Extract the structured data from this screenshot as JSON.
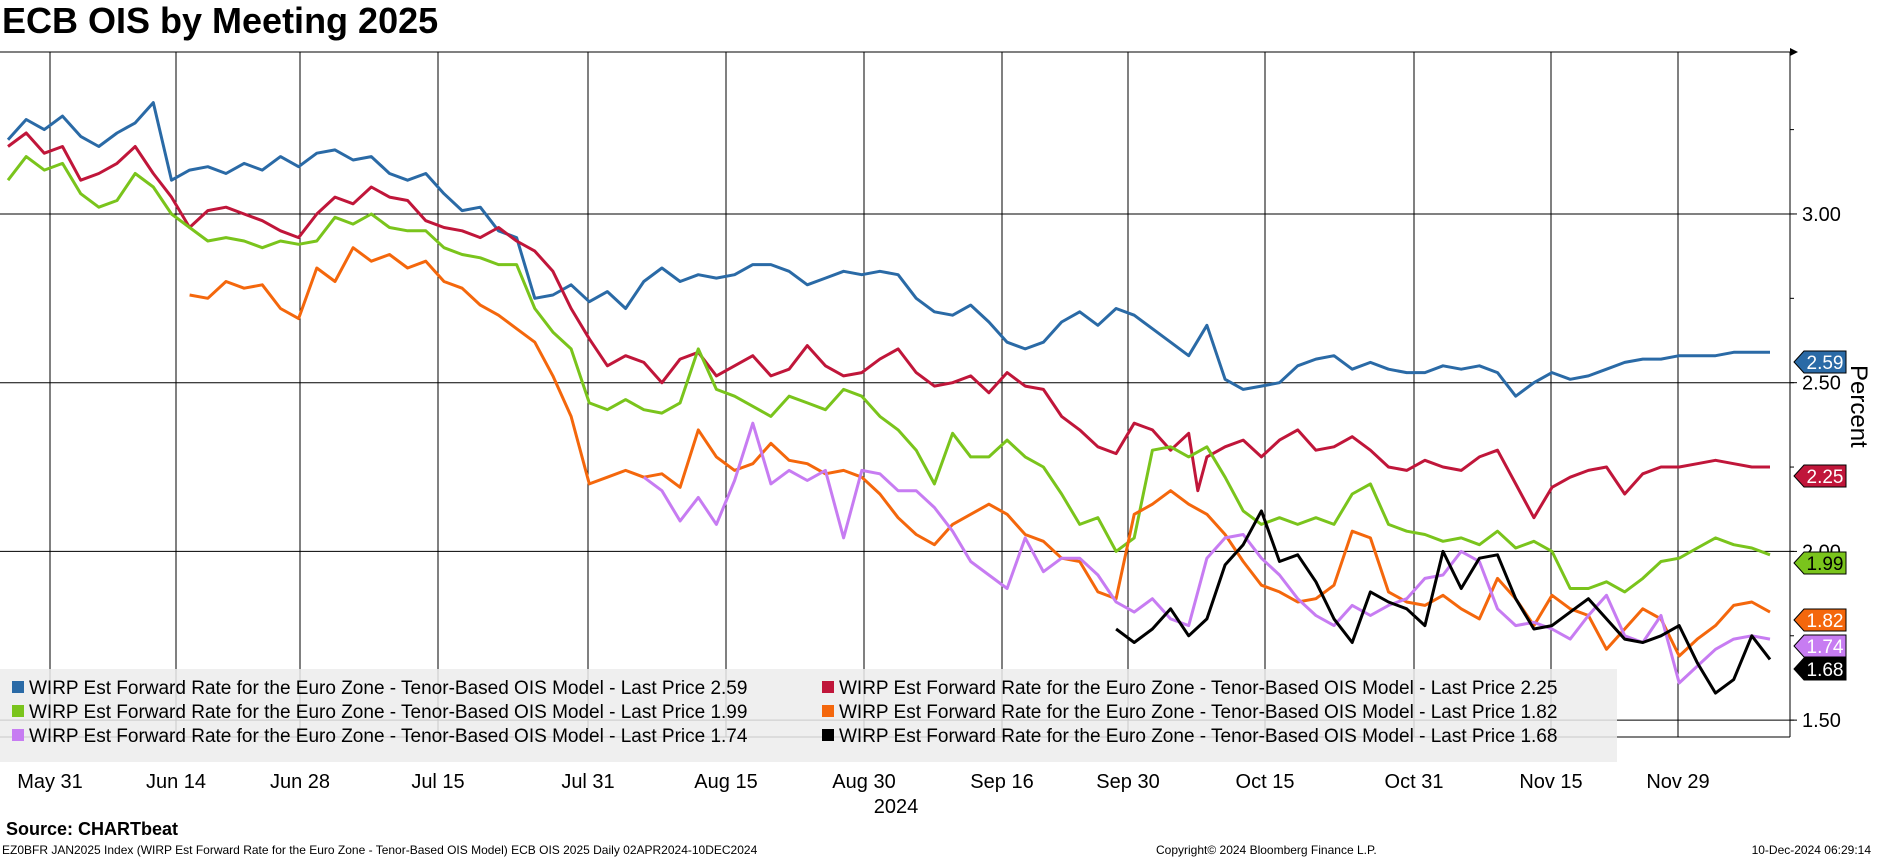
{
  "title": "ECB OIS by Meeting 2025",
  "source": "Source: CHARTbeat",
  "footer": {
    "left": "EZ0BFR JAN2025 Index (WIRP Est Forward Rate for the Euro Zone - Tenor-Based OIS Model) ECB OIS 2025  Daily 02APR2024-10DEC2024",
    "middle": "Copyright© 2024 Bloomberg Finance L.P.",
    "right": "10-Dec-2024 06:29:14"
  },
  "chart_data": {
    "type": "line",
    "title": "ECB OIS by Meeting 2025",
    "ylabel": "Percent",
    "ylim": [
      1.45,
      3.48
    ],
    "y_ticks": [
      1.5,
      2.0,
      2.5,
      3.0
    ],
    "y_tick_labels": [
      "1.50",
      "2.00",
      "2.50",
      "3.00"
    ],
    "year_label": "2024",
    "x_labels": [
      "May 31",
      "Jun 14",
      "Jun 28",
      "Jul 15",
      "Jul 31",
      "Aug 15",
      "Aug 30",
      "Sep 16",
      "Sep 30",
      "Oct 15",
      "Oct 31",
      "Nov 15",
      "Nov 29"
    ],
    "x_start": "May 31",
    "x_end": "Dec 10",
    "grid": true,
    "legend_position": "bottom-left",
    "series": [
      {
        "name": "WIRP Est Forward Rate for the Euro Zone - Tenor-Based OIS Model - Last Price 2.59",
        "last": "2.59",
        "color": "#2a6aa6",
        "x": [
          0,
          2,
          4,
          6,
          8,
          10,
          12,
          14,
          16,
          18,
          20,
          22,
          24,
          26,
          28,
          30,
          32,
          34,
          36,
          38,
          40,
          42,
          44,
          46,
          48,
          50,
          52,
          54,
          56,
          58,
          60,
          62,
          64,
          66,
          68,
          70,
          72,
          74,
          76,
          78,
          80,
          82,
          84,
          86,
          88,
          90,
          92,
          94,
          96,
          98,
          100,
          102,
          104,
          106,
          108,
          110,
          112,
          114,
          116,
          118,
          120,
          122,
          124,
          126,
          128,
          130,
          132,
          134,
          136,
          138,
          140,
          142,
          144,
          146,
          148,
          150,
          152,
          154,
          156,
          158,
          160,
          162,
          164,
          166,
          168,
          170,
          172,
          174,
          176,
          178,
          180,
          182,
          184,
          186,
          188,
          190,
          192,
          194
        ],
        "y": [
          3.22,
          3.28,
          3.25,
          3.29,
          3.23,
          3.2,
          3.24,
          3.27,
          3.33,
          3.1,
          3.13,
          3.14,
          3.12,
          3.15,
          3.13,
          3.17,
          3.14,
          3.18,
          3.19,
          3.16,
          3.17,
          3.12,
          3.1,
          3.12,
          3.06,
          3.01,
          3.02,
          2.95,
          2.93,
          2.75,
          2.76,
          2.79,
          2.74,
          2.77,
          2.72,
          2.8,
          2.84,
          2.8,
          2.82,
          2.81,
          2.82,
          2.85,
          2.85,
          2.83,
          2.79,
          2.81,
          2.83,
          2.82,
          2.83,
          2.82,
          2.75,
          2.71,
          2.7,
          2.73,
          2.68,
          2.62,
          2.6,
          2.62,
          2.68,
          2.71,
          2.67,
          2.72,
          2.7,
          2.66,
          2.62,
          2.58,
          2.67,
          2.51,
          2.48,
          2.49,
          2.5,
          2.55,
          2.57,
          2.58,
          2.54,
          2.56,
          2.54,
          2.53,
          2.53,
          2.55,
          2.54,
          2.55,
          2.53,
          2.46,
          2.5,
          2.53,
          2.51,
          2.52,
          2.54,
          2.56,
          2.57,
          2.57,
          2.58,
          2.58,
          2.58,
          2.59,
          2.59,
          2.59
        ]
      },
      {
        "name": "WIRP Est Forward Rate for the Euro Zone - Tenor-Based OIS Model - Last Price 2.25",
        "last": "2.25",
        "color": "#c0163a",
        "x": [
          0,
          2,
          4,
          6,
          8,
          10,
          12,
          14,
          16,
          18,
          20,
          22,
          24,
          26,
          28,
          30,
          32,
          34,
          36,
          38,
          40,
          42,
          44,
          46,
          48,
          50,
          52,
          54,
          56,
          58,
          60,
          62,
          64,
          66,
          68,
          70,
          72,
          74,
          76,
          78,
          80,
          82,
          84,
          86,
          88,
          90,
          92,
          94,
          96,
          98,
          100,
          102,
          104,
          106,
          108,
          110,
          112,
          114,
          116,
          118,
          120,
          122,
          124,
          126,
          128,
          130,
          131,
          132,
          134,
          136,
          138,
          140,
          142,
          144,
          146,
          148,
          150,
          152,
          154,
          156,
          158,
          160,
          162,
          164,
          166,
          168,
          170,
          172,
          174,
          176,
          178,
          180,
          182,
          184,
          186,
          188,
          190,
          192,
          194
        ],
        "y": [
          3.2,
          3.24,
          3.18,
          3.2,
          3.1,
          3.12,
          3.15,
          3.2,
          3.12,
          3.05,
          2.96,
          3.01,
          3.02,
          3.0,
          2.98,
          2.95,
          2.93,
          3.0,
          3.05,
          3.03,
          3.08,
          3.05,
          3.04,
          2.98,
          2.96,
          2.95,
          2.93,
          2.96,
          2.92,
          2.89,
          2.83,
          2.72,
          2.63,
          2.55,
          2.58,
          2.56,
          2.5,
          2.57,
          2.59,
          2.52,
          2.55,
          2.58,
          2.52,
          2.54,
          2.61,
          2.55,
          2.52,
          2.53,
          2.57,
          2.6,
          2.53,
          2.49,
          2.5,
          2.52,
          2.47,
          2.53,
          2.49,
          2.48,
          2.4,
          2.36,
          2.31,
          2.29,
          2.38,
          2.36,
          2.3,
          2.35,
          2.18,
          2.28,
          2.31,
          2.33,
          2.28,
          2.33,
          2.36,
          2.3,
          2.31,
          2.34,
          2.3,
          2.25,
          2.24,
          2.27,
          2.25,
          2.24,
          2.28,
          2.3,
          2.2,
          2.1,
          2.19,
          2.22,
          2.24,
          2.25,
          2.17,
          2.23,
          2.25,
          2.25,
          2.26,
          2.27,
          2.26,
          2.25,
          2.25
        ]
      },
      {
        "name": "WIRP Est Forward Rate for the Euro Zone - Tenor-Based OIS Model - Last Price 1.99",
        "last": "1.99",
        "color": "#7ac41c",
        "x": [
          0,
          2,
          4,
          6,
          8,
          10,
          12,
          14,
          16,
          18,
          20,
          22,
          24,
          26,
          28,
          30,
          32,
          34,
          36,
          38,
          40,
          42,
          44,
          46,
          48,
          50,
          52,
          54,
          56,
          58,
          60,
          62,
          64,
          66,
          68,
          70,
          72,
          74,
          76,
          78,
          80,
          82,
          84,
          86,
          88,
          90,
          92,
          94,
          96,
          98,
          100,
          102,
          104,
          106,
          108,
          110,
          112,
          114,
          116,
          118,
          120,
          122,
          124,
          126,
          128,
          130,
          132,
          134,
          136,
          138,
          140,
          142,
          144,
          146,
          148,
          150,
          152,
          154,
          156,
          158,
          160,
          162,
          164,
          166,
          168,
          170,
          172,
          174,
          176,
          178,
          180,
          182,
          184,
          186,
          188,
          190,
          192,
          194
        ],
        "y": [
          3.1,
          3.17,
          3.13,
          3.15,
          3.06,
          3.02,
          3.04,
          3.12,
          3.08,
          3.0,
          2.96,
          2.92,
          2.93,
          2.92,
          2.9,
          2.92,
          2.91,
          2.92,
          2.99,
          2.97,
          3.0,
          2.96,
          2.95,
          2.95,
          2.9,
          2.88,
          2.87,
          2.85,
          2.85,
          2.72,
          2.65,
          2.6,
          2.44,
          2.42,
          2.45,
          2.42,
          2.41,
          2.44,
          2.6,
          2.48,
          2.46,
          2.43,
          2.4,
          2.46,
          2.44,
          2.42,
          2.48,
          2.46,
          2.4,
          2.36,
          2.3,
          2.2,
          2.35,
          2.28,
          2.28,
          2.33,
          2.28,
          2.25,
          2.17,
          2.08,
          2.1,
          2.0,
          2.04,
          2.3,
          2.31,
          2.28,
          2.31,
          2.22,
          2.12,
          2.08,
          2.1,
          2.08,
          2.1,
          2.08,
          2.17,
          2.2,
          2.08,
          2.06,
          2.05,
          2.03,
          2.04,
          2.02,
          2.06,
          2.01,
          2.03,
          2.0,
          1.89,
          1.89,
          1.91,
          1.88,
          1.92,
          1.97,
          1.98,
          2.01,
          2.04,
          2.02,
          2.01,
          1.99
        ]
      },
      {
        "name": "WIRP Est Forward Rate for the Euro Zone - Tenor-Based OIS Model - Last Price 1.82",
        "last": "1.82",
        "color": "#f4670c",
        "x": [
          20,
          22,
          24,
          26,
          28,
          30,
          32,
          34,
          36,
          38,
          40,
          42,
          44,
          46,
          48,
          50,
          52,
          54,
          56,
          58,
          60,
          62,
          64,
          66,
          68,
          70,
          72,
          74,
          76,
          78,
          80,
          82,
          84,
          86,
          88,
          90,
          92,
          94,
          96,
          98,
          100,
          102,
          104,
          106,
          108,
          110,
          112,
          114,
          116,
          118,
          120,
          122,
          124,
          126,
          128,
          130,
          132,
          134,
          136,
          138,
          140,
          142,
          144,
          146,
          148,
          150,
          152,
          154,
          156,
          158,
          160,
          162,
          164,
          166,
          168,
          170,
          172,
          174,
          176,
          178,
          180,
          182,
          184,
          186,
          188,
          190,
          192,
          194
        ],
        "y": [
          2.76,
          2.75,
          2.8,
          2.78,
          2.79,
          2.72,
          2.69,
          2.84,
          2.8,
          2.9,
          2.86,
          2.88,
          2.84,
          2.86,
          2.8,
          2.78,
          2.73,
          2.7,
          2.66,
          2.62,
          2.52,
          2.4,
          2.2,
          2.22,
          2.24,
          2.22,
          2.23,
          2.19,
          2.36,
          2.28,
          2.24,
          2.26,
          2.32,
          2.27,
          2.26,
          2.23,
          2.24,
          2.22,
          2.17,
          2.1,
          2.05,
          2.02,
          2.08,
          2.11,
          2.14,
          2.11,
          2.05,
          2.03,
          1.98,
          1.97,
          1.88,
          1.86,
          2.11,
          2.14,
          2.18,
          2.14,
          2.11,
          2.05,
          1.97,
          1.9,
          1.88,
          1.85,
          1.86,
          1.9,
          2.06,
          2.04,
          1.88,
          1.85,
          1.84,
          1.87,
          1.83,
          1.8,
          1.92,
          1.86,
          1.78,
          1.87,
          1.83,
          1.81,
          1.71,
          1.77,
          1.83,
          1.8,
          1.69,
          1.74,
          1.78,
          1.84,
          1.85,
          1.82
        ]
      },
      {
        "name": "WIRP Est Forward Rate for the Euro Zone - Tenor-Based OIS Model - Last Price 1.74",
        "last": "1.74",
        "color": "#c77cf2",
        "x": [
          70,
          72,
          74,
          76,
          78,
          80,
          82,
          84,
          86,
          88,
          90,
          92,
          94,
          96,
          98,
          100,
          102,
          104,
          106,
          108,
          110,
          112,
          114,
          116,
          118,
          120,
          122,
          124,
          126,
          128,
          130,
          132,
          134,
          136,
          138,
          140,
          142,
          144,
          146,
          148,
          150,
          152,
          154,
          156,
          158,
          160,
          162,
          164,
          166,
          168,
          170,
          172,
          174,
          176,
          178,
          180,
          182,
          184,
          186,
          188,
          190,
          192,
          194
        ],
        "y": [
          2.22,
          2.18,
          2.09,
          2.16,
          2.08,
          2.21,
          2.38,
          2.2,
          2.24,
          2.21,
          2.24,
          2.04,
          2.24,
          2.23,
          2.18,
          2.18,
          2.13,
          2.06,
          1.97,
          1.93,
          1.89,
          2.04,
          1.94,
          1.98,
          1.98,
          1.93,
          1.85,
          1.82,
          1.86,
          1.8,
          1.78,
          1.98,
          2.04,
          2.05,
          1.98,
          1.93,
          1.86,
          1.81,
          1.78,
          1.84,
          1.81,
          1.84,
          1.86,
          1.92,
          1.93,
          2.0,
          1.97,
          1.83,
          1.78,
          1.79,
          1.77,
          1.74,
          1.81,
          1.87,
          1.75,
          1.73,
          1.81,
          1.61,
          1.66,
          1.71,
          1.74,
          1.75,
          1.74
        ]
      },
      {
        "name": "WIRP Est Forward Rate for the Euro Zone - Tenor-Based OIS Model - Last Price 1.68",
        "last": "1.68",
        "color": "#000000",
        "x": [
          122,
          124,
          126,
          128,
          130,
          132,
          134,
          136,
          138,
          140,
          142,
          144,
          146,
          148,
          150,
          152,
          154,
          156,
          158,
          160,
          162,
          164,
          166,
          168,
          170,
          172,
          174,
          176,
          178,
          180,
          182,
          184,
          186,
          188,
          190,
          192,
          194
        ],
        "y": [
          1.77,
          1.73,
          1.77,
          1.83,
          1.75,
          1.8,
          1.96,
          2.02,
          2.12,
          1.97,
          1.99,
          1.91,
          1.8,
          1.73,
          1.88,
          1.85,
          1.83,
          1.78,
          2.0,
          1.89,
          1.98,
          1.99,
          1.86,
          1.77,
          1.78,
          1.82,
          1.86,
          1.8,
          1.74,
          1.73,
          1.75,
          1.78,
          1.67,
          1.58,
          1.62,
          1.75,
          1.68
        ]
      }
    ]
  }
}
